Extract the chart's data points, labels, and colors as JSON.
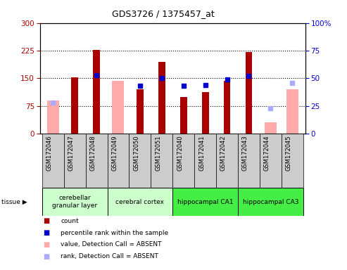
{
  "title": "GDS3726 / 1375457_at",
  "samples": [
    "GSM172046",
    "GSM172047",
    "GSM172048",
    "GSM172049",
    "GSM172050",
    "GSM172051",
    "GSM172040",
    "GSM172041",
    "GSM172042",
    "GSM172043",
    "GSM172044",
    "GSM172045"
  ],
  "count": [
    null,
    152,
    226,
    null,
    120,
    195,
    100,
    112,
    143,
    222,
    null,
    null
  ],
  "rank": [
    null,
    null,
    53,
    null,
    43,
    50,
    43,
    44,
    49,
    52,
    null,
    null
  ],
  "absent_value": [
    90,
    null,
    null,
    143,
    null,
    null,
    null,
    null,
    null,
    null,
    30,
    120
  ],
  "absent_rank": [
    28,
    null,
    null,
    null,
    null,
    null,
    null,
    null,
    null,
    null,
    23,
    46
  ],
  "tissue_data": [
    {
      "label": "cerebellar\ngranular layer",
      "start": 0,
      "end": 3,
      "color": "#ccffcc"
    },
    {
      "label": "cerebral cortex",
      "start": 3,
      "end": 6,
      "color": "#ccffcc"
    },
    {
      "label": "hippocampal CA1",
      "start": 6,
      "end": 9,
      "color": "#44ee44"
    },
    {
      "label": "hippocampal CA3",
      "start": 9,
      "end": 12,
      "color": "#44ee44"
    }
  ],
  "ylim_left": [
    0,
    300
  ],
  "ylim_right": [
    0,
    100
  ],
  "yticks_left": [
    0,
    75,
    150,
    225,
    300
  ],
  "yticks_right": [
    0,
    25,
    50,
    75,
    100
  ],
  "count_color": "#aa0000",
  "rank_color": "#0000cc",
  "absent_val_color": "#ffaaaa",
  "absent_rank_color": "#aaaaff"
}
